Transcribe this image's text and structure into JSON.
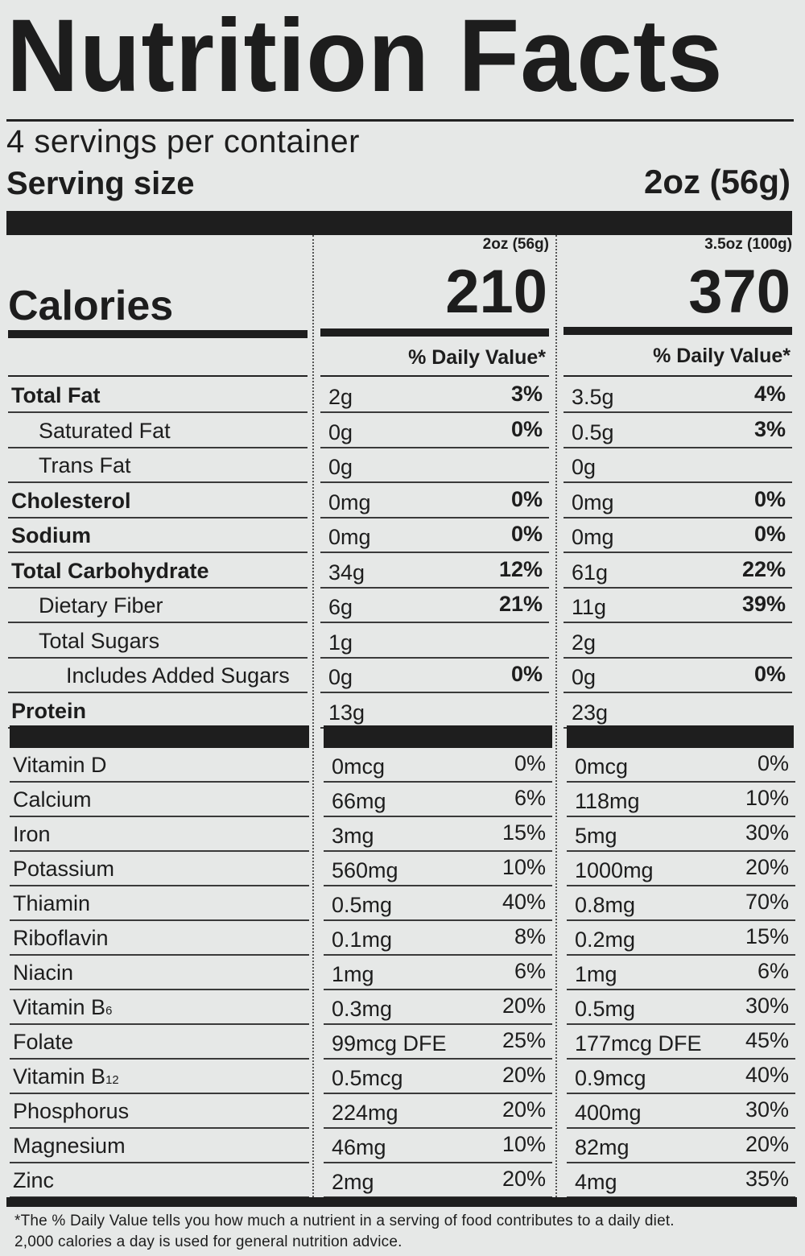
{
  "header": {
    "title": "Nutrition Facts",
    "servings_per_container": "4 servings per container",
    "serving_size_label": "Serving size",
    "serving_size_value": "2oz (56g)"
  },
  "columns": [
    {
      "serving": "2oz (56g)",
      "calories": "210",
      "dv_header": "% Daily Value*"
    },
    {
      "serving": "3.5oz (100g)",
      "calories": "370",
      "dv_header": "% Daily Value*"
    }
  ],
  "calories_label": "Calories",
  "nutrients": [
    {
      "label": "Total Fat",
      "bold": true,
      "indent": 0,
      "c1": {
        "amount": "2g",
        "dv": "3%"
      },
      "c2": {
        "amount": "3.5g",
        "dv": "4%"
      }
    },
    {
      "label": "Saturated Fat",
      "bold": false,
      "indent": 1,
      "c1": {
        "amount": "0g",
        "dv": "0%"
      },
      "c2": {
        "amount": "0.5g",
        "dv": "3%"
      }
    },
    {
      "label": "Trans Fat",
      "bold": false,
      "indent": 1,
      "c1": {
        "amount": "0g",
        "dv": ""
      },
      "c2": {
        "amount": "0g",
        "dv": ""
      }
    },
    {
      "label": "Cholesterol",
      "bold": true,
      "indent": 0,
      "c1": {
        "amount": "0mg",
        "dv": "0%"
      },
      "c2": {
        "amount": "0mg",
        "dv": "0%"
      }
    },
    {
      "label": "Sodium",
      "bold": true,
      "indent": 0,
      "c1": {
        "amount": "0mg",
        "dv": "0%"
      },
      "c2": {
        "amount": "0mg",
        "dv": "0%"
      }
    },
    {
      "label": "Total Carbohydrate",
      "bold": true,
      "indent": 0,
      "c1": {
        "amount": "34g",
        "dv": "12%"
      },
      "c2": {
        "amount": "61g",
        "dv": "22%"
      }
    },
    {
      "label": "Dietary Fiber",
      "bold": false,
      "indent": 1,
      "c1": {
        "amount": "6g",
        "dv": "21%"
      },
      "c2": {
        "amount": "11g",
        "dv": "39%"
      }
    },
    {
      "label": "Total Sugars",
      "bold": false,
      "indent": 1,
      "c1": {
        "amount": "1g",
        "dv": ""
      },
      "c2": {
        "amount": "2g",
        "dv": ""
      }
    },
    {
      "label": "Includes Added Sugars",
      "bold": false,
      "indent": 2,
      "c1": {
        "amount": "0g",
        "dv": "0%"
      },
      "c2": {
        "amount": "0g",
        "dv": "0%"
      }
    },
    {
      "label": "Protein",
      "bold": true,
      "indent": 0,
      "c1": {
        "amount": "13g",
        "dv": ""
      },
      "c2": {
        "amount": "23g",
        "dv": ""
      }
    }
  ],
  "vitamins": [
    {
      "label": "Vitamin D",
      "sub": "",
      "c1": {
        "amount": "0mcg",
        "dv": "0%"
      },
      "c2": {
        "amount": "0mcg",
        "dv": "0%"
      }
    },
    {
      "label": "Calcium",
      "sub": "",
      "c1": {
        "amount": "66mg",
        "dv": "6%"
      },
      "c2": {
        "amount": "118mg",
        "dv": "10%"
      }
    },
    {
      "label": "Iron",
      "sub": "",
      "c1": {
        "amount": "3mg",
        "dv": "15%"
      },
      "c2": {
        "amount": "5mg",
        "dv": "30%"
      }
    },
    {
      "label": "Potassium",
      "sub": "",
      "c1": {
        "amount": "560mg",
        "dv": "10%"
      },
      "c2": {
        "amount": "1000mg",
        "dv": "20%"
      }
    },
    {
      "label": "Thiamin",
      "sub": "",
      "c1": {
        "amount": "0.5mg",
        "dv": "40%"
      },
      "c2": {
        "amount": "0.8mg",
        "dv": "70%"
      }
    },
    {
      "label": "Riboflavin",
      "sub": "",
      "c1": {
        "amount": "0.1mg",
        "dv": "8%"
      },
      "c2": {
        "amount": "0.2mg",
        "dv": "15%"
      }
    },
    {
      "label": "Niacin",
      "sub": "",
      "c1": {
        "amount": "1mg",
        "dv": "6%"
      },
      "c2": {
        "amount": "1mg",
        "dv": "6%"
      }
    },
    {
      "label": "Vitamin B",
      "sub": "6",
      "c1": {
        "amount": "0.3mg",
        "dv": "20%"
      },
      "c2": {
        "amount": "0.5mg",
        "dv": "30%"
      }
    },
    {
      "label": "Folate",
      "sub": "",
      "c1": {
        "amount": "99mcg DFE",
        "dv": "25%"
      },
      "c2": {
        "amount": "177mcg DFE",
        "dv": "45%"
      }
    },
    {
      "label": "Vitamin B",
      "sub": "12",
      "c1": {
        "amount": "0.5mcg",
        "dv": "20%"
      },
      "c2": {
        "amount": "0.9mcg",
        "dv": "40%"
      }
    },
    {
      "label": "Phosphorus",
      "sub": "",
      "c1": {
        "amount": "224mg",
        "dv": "20%"
      },
      "c2": {
        "amount": "400mg",
        "dv": "30%"
      }
    },
    {
      "label": "Magnesium",
      "sub": "",
      "c1": {
        "amount": "46mg",
        "dv": "10%"
      },
      "c2": {
        "amount": "82mg",
        "dv": "20%"
      }
    },
    {
      "label": "Zinc",
      "sub": "",
      "c1": {
        "amount": "2mg",
        "dv": "20%"
      },
      "c2": {
        "amount": "4mg",
        "dv": "35%"
      }
    }
  ],
  "footnote": {
    "line1": "*The % Daily Value tells you how much a nutrient in a serving of food contributes to a daily diet.",
    "line2": "2,000 calories a day is used for general nutrition advice."
  }
}
